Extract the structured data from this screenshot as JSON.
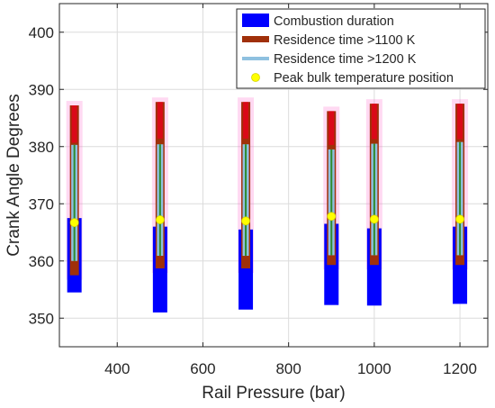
{
  "chart_data": {
    "type": "range-bar",
    "xlabel": "Rail Pressure (bar)",
    "ylabel": "Crank Angle Degrees",
    "xlim": [
      265,
      1265
    ],
    "ylim": [
      345,
      405
    ],
    "xticks": [
      400,
      600,
      800,
      1000,
      1200
    ],
    "yticks": [
      350,
      360,
      370,
      380,
      390,
      400
    ],
    "grid": true,
    "legend_position": "top-right",
    "legend": {
      "combustion": "Combustion duration",
      "res1100": "Residence time >1100 K",
      "res1200": "Residence time >1200 K",
      "peak": "Peak bulk temperature position"
    },
    "colors": {
      "combustion": "#0000ff",
      "res1100": "#a0300a",
      "res1100_hi": "#e8001c",
      "res1200": "#8fc1e0",
      "res1200_core": "#2e8b2e",
      "peak": "#ffff00",
      "peak_edge": "#d6d600",
      "halo": "#ff66cc"
    },
    "categories": [
      300,
      500,
      700,
      900,
      1000,
      1200
    ],
    "series": [
      {
        "key": "combustion",
        "ranges": [
          [
            354.5,
            367.5
          ],
          [
            351.0,
            366.0
          ],
          [
            351.5,
            365.5
          ],
          [
            352.3,
            366.5
          ],
          [
            352.2,
            365.7
          ],
          [
            352.5,
            366.0
          ]
        ]
      },
      {
        "key": "res1100",
        "ranges": [
          [
            357.5,
            387.2
          ],
          [
            358.7,
            387.8
          ],
          [
            358.7,
            387.8
          ],
          [
            359.3,
            386.2
          ],
          [
            359.3,
            387.5
          ],
          [
            359.3,
            387.5
          ]
        ]
      },
      {
        "key": "res1200",
        "ranges": [
          [
            360.0,
            380.3
          ],
          [
            360.9,
            380.4
          ],
          [
            360.9,
            380.4
          ],
          [
            361.0,
            379.5
          ],
          [
            361.0,
            380.5
          ],
          [
            361.0,
            380.8
          ]
        ]
      },
      {
        "key": "peak",
        "values": [
          366.7,
          367.2,
          367.0,
          367.8,
          367.3,
          367.3
        ]
      }
    ]
  }
}
